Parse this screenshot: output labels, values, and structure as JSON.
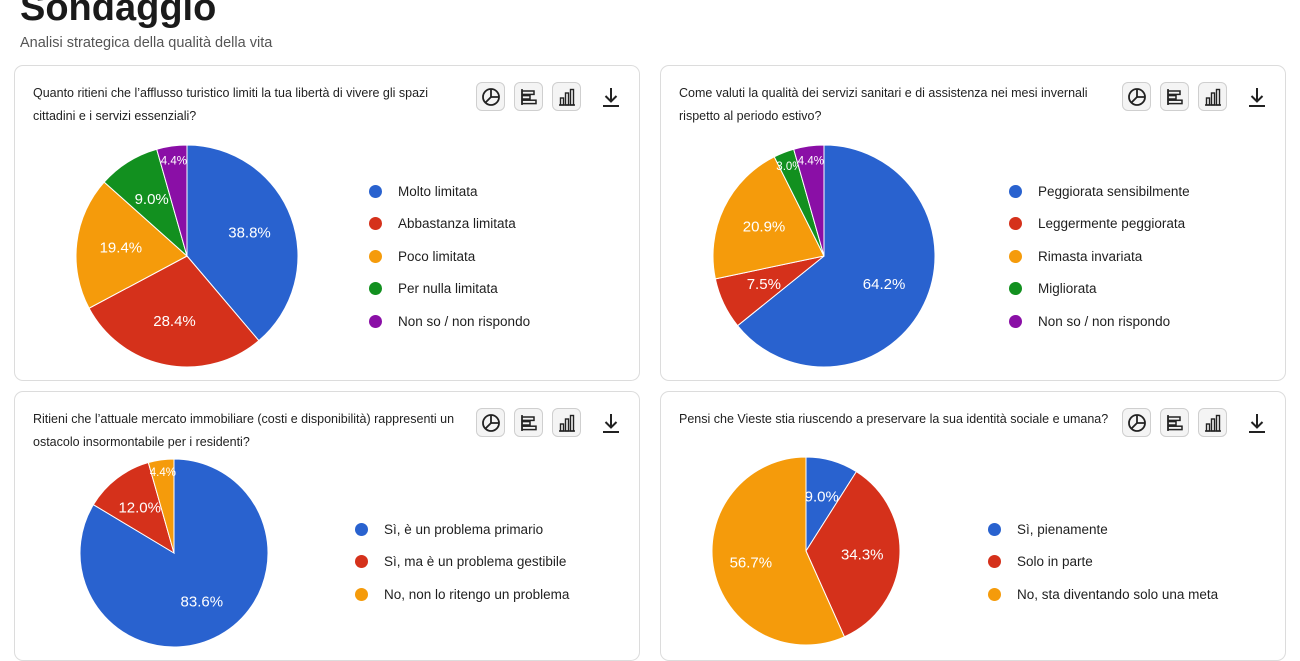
{
  "page": {
    "title": "Sondaggio",
    "subtitle": "Analisi strategica della qualità della vita"
  },
  "toolbar_icons": [
    "pie-chart-icon",
    "horizontal-bar-chart-icon",
    "bar-chart-icon",
    "download-icon"
  ],
  "colors": {
    "blue": "#2962cf",
    "red": "#d5311b",
    "orange": "#f59b0b",
    "green": "#12901f",
    "purple": "#8a0fa6"
  },
  "chart_data": [
    {
      "type": "pie",
      "title": "Quanto ritieni che l’afflusso turistico limiti la tua libertà di vivere gli spazi cittadini e i servizi essenziali?",
      "labels": [
        "Molto limitata",
        "Abbastanza limitata",
        "Poco limitata",
        "Per nulla limitata",
        "Non so / non rispondo"
      ],
      "values": [
        38.8,
        28.4,
        19.4,
        9.0,
        4.4
      ],
      "value_labels": [
        "38.8%",
        "28.4%",
        "19.4%",
        "9.0%",
        "4.4%"
      ],
      "colors": [
        "#2962cf",
        "#d5311b",
        "#f59b0b",
        "#12901f",
        "#8a0fa6"
      ],
      "legend": "right"
    },
    {
      "type": "pie",
      "title": "Come valuti la qualità dei servizi sanitari e di assistenza nei mesi invernali rispetto al periodo estivo?",
      "labels": [
        "Peggiorata sensibilmente",
        "Leggermente peggiorata",
        "Rimasta invariata",
        "Migliorata",
        "Non so / non rispondo"
      ],
      "values": [
        64.2,
        7.5,
        20.9,
        3.0,
        4.4
      ],
      "value_labels": [
        "64.2%",
        "7.5%",
        "20.9%",
        "3.0%",
        "4.4%"
      ],
      "colors": [
        "#2962cf",
        "#d5311b",
        "#f59b0b",
        "#12901f",
        "#8a0fa6"
      ],
      "legend": "right"
    },
    {
      "type": "pie",
      "title": "Ritieni che l’attuale mercato immobiliare (costi e disponibilità) rappresenti un ostacolo insormontabile per i residenti?",
      "labels": [
        "Sì, è un problema primario",
        "Sì, ma è un problema gestibile",
        "No, non lo ritengo un problema"
      ],
      "values": [
        83.6,
        12.0,
        4.4
      ],
      "value_labels": [
        "83.6%",
        "12.0%",
        "4.4%"
      ],
      "colors": [
        "#2962cf",
        "#d5311b",
        "#f59b0b"
      ],
      "legend": "right"
    },
    {
      "type": "pie",
      "title": "Pensi che Vieste stia riuscendo a preservare la sua identità sociale e umana?",
      "labels": [
        "Sì, pienamente",
        "Solo in parte",
        "No, sta diventando solo una meta"
      ],
      "values": [
        9.0,
        34.3,
        56.7
      ],
      "value_labels": [
        "9.0%",
        "34.3%",
        "56.7%"
      ],
      "colors": [
        "#2962cf",
        "#d5311b",
        "#f59b0b"
      ],
      "legend": "right"
    }
  ]
}
